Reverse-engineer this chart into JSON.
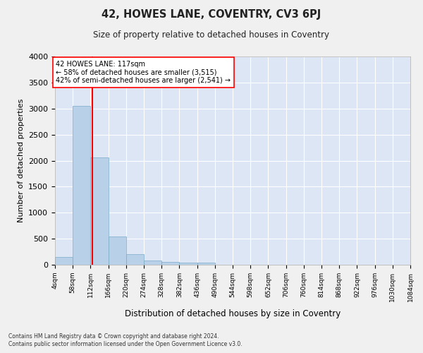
{
  "title": "42, HOWES LANE, COVENTRY, CV3 6PJ",
  "subtitle": "Size of property relative to detached houses in Coventry",
  "xlabel": "Distribution of detached houses by size in Coventry",
  "ylabel": "Number of detached properties",
  "footnote1": "Contains HM Land Registry data © Crown copyright and database right 2024.",
  "footnote2": "Contains public sector information licensed under the Open Government Licence v3.0.",
  "annotation_line1": "42 HOWES LANE: 117sqm",
  "annotation_line2": "← 58% of detached houses are smaller (3,515)",
  "annotation_line3": "42% of semi-detached houses are larger (2,541) →",
  "bar_color": "#b8d0e8",
  "bar_edge_color": "#7aaac8",
  "background_color": "#dce6f5",
  "grid_color": "#ffffff",
  "fig_background": "#f0f0f0",
  "bin_edges": [
    4,
    58,
    112,
    166,
    220,
    274,
    328,
    382,
    436,
    490,
    544,
    598,
    652,
    706,
    760,
    814,
    868,
    922,
    976,
    1030,
    1084
  ],
  "bar_heights": [
    143,
    3050,
    2060,
    548,
    205,
    80,
    55,
    40,
    45,
    0,
    0,
    0,
    0,
    0,
    0,
    0,
    0,
    0,
    0,
    0
  ],
  "tick_labels": [
    "4sqm",
    "58sqm",
    "112sqm",
    "166sqm",
    "220sqm",
    "274sqm",
    "328sqm",
    "382sqm",
    "436sqm",
    "490sqm",
    "544sqm",
    "598sqm",
    "652sqm",
    "706sqm",
    "760sqm",
    "814sqm",
    "868sqm",
    "922sqm",
    "976sqm",
    "1030sqm",
    "1084sqm"
  ],
  "red_line_x": 117,
  "ylim": [
    0,
    4000
  ],
  "yticks": [
    0,
    500,
    1000,
    1500,
    2000,
    2500,
    3000,
    3500,
    4000
  ]
}
